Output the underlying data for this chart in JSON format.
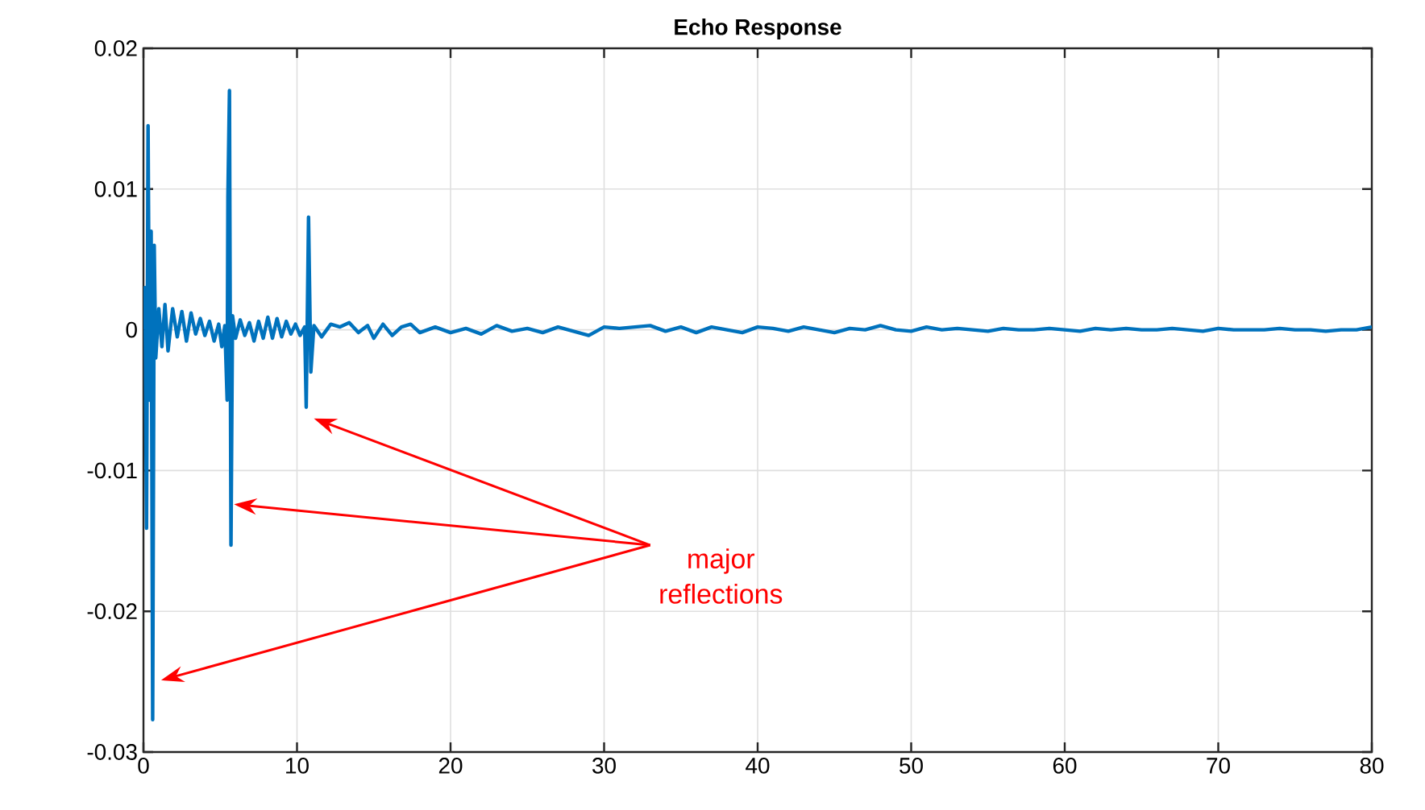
{
  "chart_data": {
    "type": "line",
    "title": "Echo Response",
    "x": [
      0,
      0.1,
      0.2,
      0.3,
      0.4,
      0.5,
      0.6,
      0.7,
      0.8,
      1.0,
      1.2,
      1.4,
      1.6,
      1.9,
      2.2,
      2.5,
      2.8,
      3.1,
      3.4,
      3.7,
      4.0,
      4.3,
      4.6,
      4.9,
      5.1,
      5.3,
      5.45,
      5.5,
      5.6,
      5.7,
      5.8,
      6.0,
      6.3,
      6.6,
      6.9,
      7.2,
      7.5,
      7.8,
      8.1,
      8.4,
      8.7,
      9.0,
      9.3,
      9.6,
      9.9,
      10.2,
      10.5,
      10.6,
      10.75,
      10.9,
      11.1,
      11.6,
      12.2,
      12.8,
      13.4,
      14.0,
      14.6,
      15.0,
      15.6,
      16.2,
      16.8,
      17.4,
      18.0,
      19,
      20,
      21,
      22,
      23,
      24,
      25,
      26,
      27,
      28,
      29,
      30,
      31,
      32,
      33,
      34,
      35,
      36,
      37,
      38,
      39,
      40,
      41,
      42,
      43,
      44,
      45,
      46,
      47,
      48,
      49,
      50,
      51,
      52,
      53,
      54,
      55,
      56,
      57,
      58,
      59,
      60,
      61,
      62,
      63,
      64,
      65,
      66,
      67,
      68,
      69,
      70,
      71,
      72,
      73,
      74,
      75,
      76,
      77,
      78,
      79,
      80
    ],
    "series": [
      {
        "color": "#0072bd",
        "values": [
          0.0,
          0.003,
          -0.0141,
          0.0145,
          -0.005,
          0.007,
          -0.0277,
          0.006,
          -0.002,
          0.0015,
          -0.0012,
          0.0018,
          -0.0015,
          0.0015,
          -0.0005,
          0.0013,
          -0.0008,
          0.0012,
          -0.0003,
          0.0008,
          -0.0004,
          0.0006,
          -0.0008,
          0.0004,
          -0.0012,
          0.0003,
          -0.005,
          0.0095,
          0.017,
          -0.0153,
          0.001,
          -0.0006,
          0.0007,
          -0.0004,
          0.0005,
          -0.0008,
          0.0006,
          -0.0006,
          0.0009,
          -0.0006,
          0.0008,
          -0.0005,
          0.0006,
          -0.0003,
          0.0004,
          -0.0004,
          0.0002,
          -0.0055,
          0.008,
          -0.003,
          0.0003,
          -0.0005,
          0.0004,
          0.0002,
          0.0005,
          -0.0002,
          0.0003,
          -0.0006,
          0.0004,
          -0.0004,
          0.0002,
          0.0004,
          -0.0002,
          0.0002,
          -0.0002,
          0.0001,
          -0.0003,
          0.0003,
          -0.0001,
          0.0001,
          -0.0002,
          0.0002,
          -0.0001,
          -0.0004,
          0.0002,
          0.0001,
          0.0002,
          0.0003,
          -0.0001,
          0.0002,
          -0.0002,
          0.0002,
          0.0,
          -0.0002,
          0.0002,
          0.0001,
          -0.0001,
          0.0002,
          0.0,
          -0.0002,
          0.0001,
          0.0,
          0.0003,
          0.0,
          -0.0001,
          0.0002,
          0.0,
          0.0001,
          0.0,
          -0.0001,
          0.0001,
          0.0,
          0.0,
          0.0001,
          0.0,
          -0.0001,
          0.0001,
          0.0,
          0.0001,
          0.0,
          0.0,
          0.0001,
          0.0,
          -0.0001,
          0.0001,
          0.0,
          0.0,
          0.0,
          0.0001,
          0.0,
          0.0,
          -0.0001,
          0.0,
          0.0,
          0.0002
        ]
      }
    ],
    "xlim": [
      0,
      80
    ],
    "ylim": [
      -0.03,
      0.02
    ],
    "xticks": [
      0,
      10,
      20,
      30,
      40,
      50,
      60,
      70,
      80
    ],
    "yticks": [
      -0.03,
      -0.02,
      -0.01,
      0,
      0.01,
      0.02
    ],
    "grid": true,
    "marker": "none",
    "line_style": "solid",
    "annotations": [
      "major reflections"
    ]
  }
}
